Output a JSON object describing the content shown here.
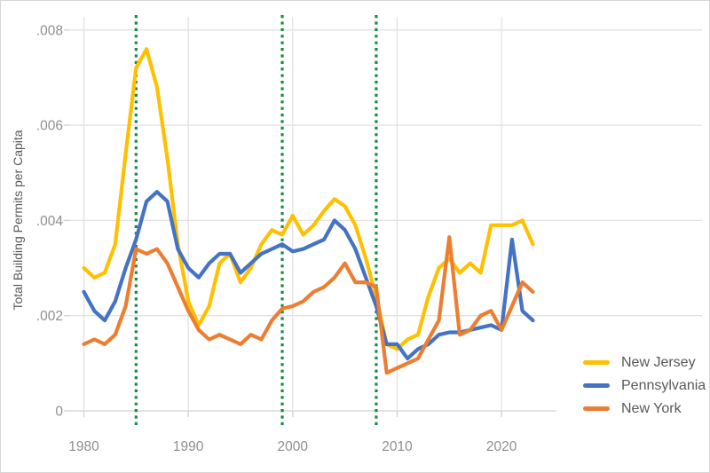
{
  "chart_data": {
    "type": "line",
    "title": "",
    "xlabel": "",
    "ylabel": "Total Building Permits per Capita",
    "x": [
      1980,
      1981,
      1982,
      1983,
      1984,
      1985,
      1986,
      1987,
      1988,
      1989,
      1990,
      1991,
      1992,
      1993,
      1994,
      1995,
      1996,
      1997,
      1998,
      1999,
      2000,
      2001,
      2002,
      2003,
      2004,
      2005,
      2006,
      2007,
      2008,
      2009,
      2010,
      2011,
      2012,
      2013,
      2014,
      2015,
      2016,
      2017,
      2018,
      2019,
      2020,
      2021,
      2022,
      2023
    ],
    "series": [
      {
        "name": "New Jersey",
        "color": "#FFC000",
        "values": [
          0.003,
          0.0028,
          0.0029,
          0.0035,
          0.0054,
          0.0072,
          0.0076,
          0.0068,
          0.0053,
          0.0035,
          0.0023,
          0.0018,
          0.0022,
          0.0031,
          0.0033,
          0.0027,
          0.003,
          0.0035,
          0.0038,
          0.0037,
          0.0041,
          0.0037,
          0.0039,
          0.0042,
          0.00445,
          0.0043,
          0.0039,
          0.0032,
          0.0024,
          0.0014,
          0.0013,
          0.0015,
          0.0016,
          0.0024,
          0.003,
          0.0032,
          0.0029,
          0.0031,
          0.0029,
          0.0039,
          0.0039,
          0.0039,
          0.004,
          0.0035
        ]
      },
      {
        "name": "Pennsylvania",
        "color": "#4472C4",
        "values": [
          0.0025,
          0.0021,
          0.0019,
          0.0023,
          0.003,
          0.0036,
          0.0044,
          0.0046,
          0.0044,
          0.0034,
          0.003,
          0.0028,
          0.0031,
          0.0033,
          0.0033,
          0.0029,
          0.0031,
          0.0033,
          0.0034,
          0.0035,
          0.00335,
          0.0034,
          0.0035,
          0.0036,
          0.004,
          0.0038,
          0.0034,
          0.0028,
          0.0022,
          0.0014,
          0.0014,
          0.0011,
          0.0013,
          0.0014,
          0.0016,
          0.00165,
          0.00165,
          0.0017,
          0.00175,
          0.0018,
          0.0017,
          0.0036,
          0.0021,
          0.0019
        ]
      },
      {
        "name": "New York",
        "color": "#ED7D31",
        "values": [
          0.0014,
          0.0015,
          0.0014,
          0.0016,
          0.0022,
          0.0034,
          0.0033,
          0.0034,
          0.0031,
          0.0026,
          0.0021,
          0.0017,
          0.0015,
          0.0016,
          0.0015,
          0.0014,
          0.0016,
          0.0015,
          0.0019,
          0.00215,
          0.0022,
          0.0023,
          0.0025,
          0.0026,
          0.0028,
          0.0031,
          0.0027,
          0.0027,
          0.0026,
          0.0008,
          0.0009,
          0.001,
          0.0011,
          0.0015,
          0.0019,
          0.00365,
          0.0016,
          0.0017,
          0.002,
          0.0021,
          0.0017,
          0.0022,
          0.0027,
          0.0025
        ]
      }
    ],
    "vlines": {
      "years": [
        1985,
        1999,
        2008
      ],
      "color": "#148C46",
      "style": "dashed"
    },
    "yticks": {
      "values": [
        0,
        0.002,
        0.004,
        0.006,
        0.008
      ],
      "labels": [
        "0",
        ".002",
        ".004",
        ".006",
        ".008"
      ]
    },
    "xticks": {
      "values": [
        1980,
        1990,
        2000,
        2010,
        2020
      ],
      "labels": [
        "1980",
        "1990",
        "2000",
        "2010",
        "2020"
      ]
    },
    "ylim": [
      0,
      0.008
    ],
    "xlim": [
      1980,
      2023
    ],
    "grid": true,
    "legend_position": "bottom-right"
  },
  "legend": {
    "items": [
      {
        "label": "New Jersey",
        "color": "#FFC000"
      },
      {
        "label": "Pennsylvania",
        "color": "#4472C4"
      },
      {
        "label": "New York",
        "color": "#ED7D31"
      }
    ]
  },
  "colors": {
    "background": "#ffffff",
    "border": "#d6d6d6",
    "gridline": "#e2e2e2",
    "axis_line": "#d2d2d2",
    "tick_text": "#8f8f8f",
    "axis_title_text": "#595959",
    "vline_green": "#148C46"
  }
}
